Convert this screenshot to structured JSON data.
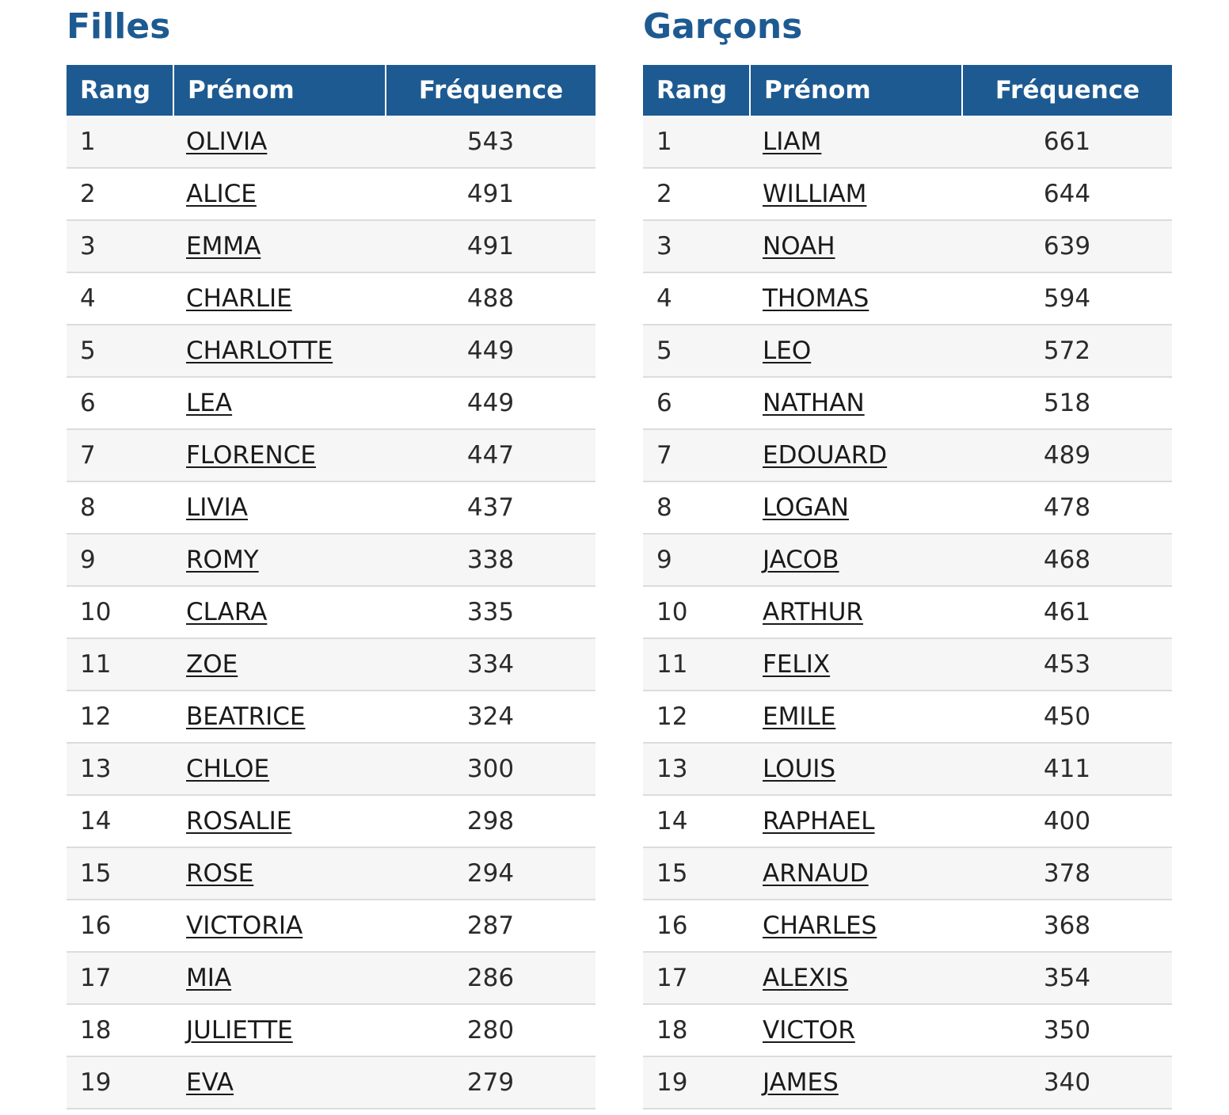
{
  "headers": {
    "rank": "Rang",
    "name": "Prénom",
    "frequency": "Fréquence"
  },
  "girls": {
    "title": "Filles",
    "rows": [
      {
        "rank": "1",
        "name": "OLIVIA",
        "freq": "543"
      },
      {
        "rank": "2",
        "name": "ALICE",
        "freq": "491"
      },
      {
        "rank": "3",
        "name": "EMMA",
        "freq": "491"
      },
      {
        "rank": "4",
        "name": "CHARLIE",
        "freq": "488"
      },
      {
        "rank": "5",
        "name": "CHARLOTTE",
        "freq": "449"
      },
      {
        "rank": "6",
        "name": "LEA",
        "freq": "449"
      },
      {
        "rank": "7",
        "name": "FLORENCE",
        "freq": "447"
      },
      {
        "rank": "8",
        "name": "LIVIA",
        "freq": "437"
      },
      {
        "rank": "9",
        "name": "ROMY",
        "freq": "338"
      },
      {
        "rank": "10",
        "name": "CLARA",
        "freq": "335"
      },
      {
        "rank": "11",
        "name": "ZOE",
        "freq": "334"
      },
      {
        "rank": "12",
        "name": "BEATRICE",
        "freq": "324"
      },
      {
        "rank": "13",
        "name": "CHLOE",
        "freq": "300"
      },
      {
        "rank": "14",
        "name": "ROSALIE",
        "freq": "298"
      },
      {
        "rank": "15",
        "name": "ROSE",
        "freq": "294"
      },
      {
        "rank": "16",
        "name": "VICTORIA",
        "freq": "287"
      },
      {
        "rank": "17",
        "name": "MIA",
        "freq": "286"
      },
      {
        "rank": "18",
        "name": "JULIETTE",
        "freq": "280"
      },
      {
        "rank": "19",
        "name": "EVA",
        "freq": "279"
      }
    ]
  },
  "boys": {
    "title": "Garçons",
    "rows": [
      {
        "rank": "1",
        "name": "LIAM",
        "freq": "661"
      },
      {
        "rank": "2",
        "name": "WILLIAM",
        "freq": "644"
      },
      {
        "rank": "3",
        "name": "NOAH",
        "freq": "639"
      },
      {
        "rank": "4",
        "name": "THOMAS",
        "freq": "594"
      },
      {
        "rank": "5",
        "name": "LEO",
        "freq": "572"
      },
      {
        "rank": "6",
        "name": "NATHAN",
        "freq": "518"
      },
      {
        "rank": "7",
        "name": "EDOUARD",
        "freq": "489"
      },
      {
        "rank": "8",
        "name": "LOGAN",
        "freq": "478"
      },
      {
        "rank": "9",
        "name": "JACOB",
        "freq": "468"
      },
      {
        "rank": "10",
        "name": "ARTHUR",
        "freq": "461"
      },
      {
        "rank": "11",
        "name": "FELIX",
        "freq": "453"
      },
      {
        "rank": "12",
        "name": "EMILE",
        "freq": "450"
      },
      {
        "rank": "13",
        "name": "LOUIS",
        "freq": "411"
      },
      {
        "rank": "14",
        "name": "RAPHAEL",
        "freq": "400"
      },
      {
        "rank": "15",
        "name": "ARNAUD",
        "freq": "378"
      },
      {
        "rank": "16",
        "name": "CHARLES",
        "freq": "368"
      },
      {
        "rank": "17",
        "name": "ALEXIS",
        "freq": "354"
      },
      {
        "rank": "18",
        "name": "VICTOR",
        "freq": "350"
      },
      {
        "rank": "19",
        "name": "JAMES",
        "freq": "340"
      }
    ]
  },
  "colors": {
    "accent": "#1d5a91",
    "row_alt": "#f6f6f6",
    "row_border": "#dcdcdc"
  }
}
